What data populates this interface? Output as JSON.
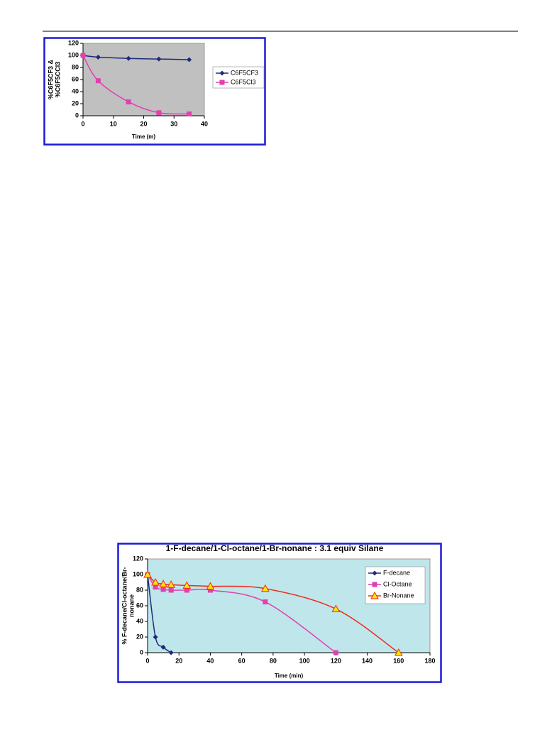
{
  "chart_data": [
    {
      "type": "line",
      "xlabel": "Time (m)",
      "ylabel": [
        "%C6F5CF3 &",
        "%C6F5CCl3"
      ],
      "xlim": [
        0,
        40
      ],
      "xticks": [
        0,
        10,
        20,
        30,
        40
      ],
      "ylim": [
        0,
        120
      ],
      "yticks": [
        0,
        20,
        40,
        60,
        80,
        100,
        120
      ],
      "background": "#c0c0c0",
      "legend": "right",
      "series": [
        {
          "name": "C6F5CF3",
          "color": "#1f2a7a",
          "marker": "diamond",
          "x": [
            0,
            5,
            15,
            25,
            35
          ],
          "values": [
            100,
            97,
            95,
            94,
            93
          ]
        },
        {
          "name": "C6F5Cl3",
          "color": "#e040b0",
          "marker": "square",
          "x": [
            0,
            5,
            15,
            25,
            35
          ],
          "values": [
            100,
            58,
            23,
            5,
            3
          ]
        }
      ]
    },
    {
      "type": "line",
      "title": "1-F-decane/1-Cl-octane/1-Br-nonane : 3.1 equiv Silane",
      "xlabel": "Time (min)",
      "ylabel": [
        "% F-decane/Cl-octane/Br-",
        "nonane"
      ],
      "xlim": [
        0,
        180
      ],
      "xticks": [
        0,
        20,
        40,
        60,
        80,
        100,
        120,
        140,
        160,
        180
      ],
      "ylim": [
        0,
        120
      ],
      "yticks": [
        0,
        20,
        40,
        60,
        80,
        100,
        120
      ],
      "background": "#bfe6ea",
      "legend": "upper right",
      "series": [
        {
          "name": "F-decane",
          "color": "#1f2a7a",
          "marker": "diamond",
          "x": [
            0,
            5,
            10,
            15
          ],
          "values": [
            100,
            20,
            7,
            0
          ]
        },
        {
          "name": "Cl-Octane",
          "color": "#e040b0",
          "marker": "square",
          "x": [
            0,
            5,
            10,
            15,
            25,
            40,
            75,
            120
          ],
          "values": [
            100,
            84,
            81,
            80,
            80,
            80,
            65,
            0
          ]
        },
        {
          "name": "Br-Nonane",
          "color": "#ee2b1e",
          "marker": "triangle",
          "x": [
            0,
            5,
            10,
            15,
            25,
            40,
            75,
            120,
            160
          ],
          "values": [
            100,
            90,
            88,
            87,
            86,
            85,
            82,
            56,
            0
          ]
        }
      ]
    }
  ]
}
